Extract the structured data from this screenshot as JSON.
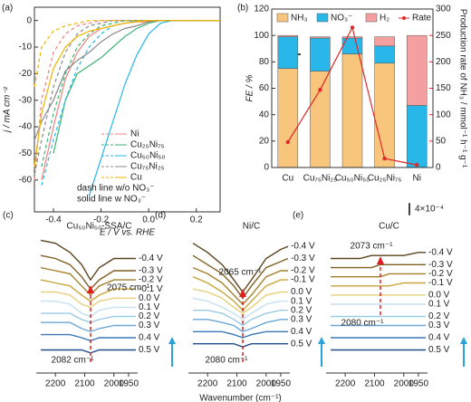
{
  "chart_data": [
    {
      "type": "line",
      "panel": "(a)",
      "xlabel": "E / V vs. RHE",
      "ylabel": "j / mA cm⁻²",
      "x": [
        -0.48,
        -0.45,
        -0.4,
        -0.35,
        -0.3,
        -0.25,
        -0.2,
        -0.15,
        -0.1,
        -0.05,
        0,
        0.05,
        0.1,
        0.2,
        0.3
      ],
      "xlim": [
        -0.48,
        0.3
      ],
      "xticks": [
        -0.4,
        -0.2,
        {
          "value": 0,
          "label": "0.0"
        },
        0.2
      ],
      "ylim": [
        -72,
        5
      ],
      "yticks": [
        0,
        -10,
        -20,
        -30,
        -40,
        -50,
        -60
      ],
      "series": [
        {
          "name": "Ni",
          "color": "#f08080",
          "values": [
            null,
            -60,
            -40,
            -22,
            -12,
            -6,
            -3,
            -2,
            -1,
            -0.5,
            -0.5,
            0,
            0,
            0,
            0
          ],
          "values_no_nitrate": [
            -60,
            -30,
            -12,
            -5,
            -2,
            -1,
            0,
            0,
            0,
            0,
            0,
            0,
            0,
            0,
            0
          ]
        },
        {
          "name": "Cu₂₅Ni₇₅",
          "color": "#3cb371",
          "values": [
            null,
            null,
            -50,
            -30,
            -20,
            -17,
            -14,
            -10,
            -6,
            -3,
            -1,
            0,
            0,
            0,
            0
          ],
          "values_no_nitrate": [
            null,
            -55,
            -35,
            -20,
            -10,
            -5,
            -2,
            -1,
            0,
            0,
            0,
            0,
            0,
            0,
            0
          ]
        },
        {
          "name": "Cu₅₀Ni₅₀",
          "color": "#29b6e8",
          "values": [
            null,
            null,
            null,
            null,
            null,
            -66,
            -52,
            -38,
            -24,
            -13,
            -5,
            -1,
            0,
            0,
            0
          ],
          "values_no_nitrate": [
            null,
            -62,
            -45,
            -30,
            -18,
            -10,
            -5,
            -2,
            -1,
            0,
            0,
            0,
            0,
            0,
            0
          ]
        },
        {
          "name": "Cu₇₅Ni₂₅",
          "color": "#8a8a8a",
          "values": [
            -45,
            -38,
            -30,
            -19,
            -15,
            -12,
            -8,
            -5,
            -3,
            -2,
            -0.5,
            0,
            0,
            0,
            0
          ],
          "values_no_nitrate": [
            -58,
            -45,
            -25,
            -12,
            -5,
            -2,
            -1,
            0,
            0,
            0,
            0,
            0,
            0,
            0,
            0
          ]
        },
        {
          "name": "Cu",
          "color": "#f0b400",
          "values": [
            -55,
            -35,
            -18,
            -10,
            -6,
            -4,
            -3,
            -2,
            -1,
            -0.5,
            0,
            0,
            0,
            0,
            0
          ],
          "values_no_nitrate": [
            -25,
            -10,
            -4,
            -2,
            -1,
            0,
            0,
            0,
            0,
            0,
            0,
            0,
            0,
            0,
            0
          ]
        }
      ],
      "annotations": [
        "dash line w/o NO₃⁻",
        "solid line w NO₃⁻"
      ]
    },
    {
      "type": "bar",
      "panel": "(b)",
      "ylabel": "FE / %",
      "y2label": "Production rate of NH₃ / mmol⁻¹ h⁻¹ g⁻¹",
      "categories": [
        "Cu",
        "Cu₇₅Ni₂₅",
        "Cu₅₀Ni₅₀",
        "Cu₂₅Ni₇₅",
        "Ni"
      ],
      "ylim": [
        0,
        120
      ],
      "yticks": [
        0,
        20,
        40,
        60,
        80,
        100,
        120
      ],
      "y2lim": [
        0,
        300
      ],
      "y2ticks": [
        0,
        50,
        100,
        150,
        200,
        250,
        300
      ],
      "series": [
        {
          "name": "NH₃",
          "color": "#f7c57c",
          "values": [
            75,
            73,
            86,
            79,
            0
          ]
        },
        {
          "name": "NO₃⁻",
          "color": "#29b6e8",
          "values": [
            24,
            25,
            12,
            13,
            47
          ]
        },
        {
          "name": "H₂",
          "color": "#f5a0a0",
          "values": [
            1,
            1,
            1,
            7,
            53
          ]
        },
        {
          "name": "Rate",
          "color": "#e02828",
          "axis": "y2",
          "values": [
            48,
            147,
            265,
            17,
            5
          ]
        }
      ]
    },
    {
      "type": "spectra",
      "title": "Cu₅₀Ni₅₀-SSA/C",
      "panel": "(c)",
      "x": [
        2250,
        2200,
        2150,
        2110,
        2080,
        2050,
        2000,
        1950,
        1925
      ],
      "xlim": [
        2250,
        1925
      ],
      "xticks": [
        2200,
        2100,
        2000,
        1950
      ],
      "ylim": [
        0,
        44
      ],
      "series": [
        {
          "name": "-0.4 V",
          "color": "#5c4320",
          "values": [
            43,
            42,
            39,
            35,
            30,
            34,
            37,
            37,
            37
          ]
        },
        {
          "name": "-0.3 V",
          "color": "#7f5f22",
          "values": [
            38,
            37,
            35,
            31,
            27,
            30,
            33,
            33,
            33
          ]
        },
        {
          "name": "-0.2 V",
          "color": "#a3802a",
          "values": [
            34,
            33,
            32,
            28,
            25,
            28,
            30,
            30,
            30
          ]
        },
        {
          "name": "-0.1 V",
          "color": "#c9a53a",
          "values": [
            30,
            29,
            28,
            25,
            23,
            25,
            27,
            27,
            27
          ]
        },
        {
          "name": "0.0 V",
          "color": "#e6d07a",
          "values": [
            26,
            26,
            25,
            22,
            21,
            23,
            24,
            24,
            24
          ]
        },
        {
          "name": "0.1 V",
          "color": "#c4e0f0",
          "values": [
            23,
            23,
            22,
            19,
            18,
            20,
            21,
            21,
            21
          ]
        },
        {
          "name": "0.2 V",
          "color": "#9ccbe8",
          "values": [
            19,
            19,
            19,
            17,
            16,
            17,
            18,
            18,
            18
          ]
        },
        {
          "name": "0.3 V",
          "color": "#6aa8d8",
          "values": [
            16,
            16,
            16,
            14,
            13,
            14,
            15,
            15,
            15
          ]
        },
        {
          "name": "0.4 V",
          "color": "#3a78b8",
          "values": [
            12,
            12,
            12,
            11,
            10,
            11,
            11,
            11,
            11
          ]
        },
        {
          "name": "0.5 V",
          "color": "#1f4e8c",
          "values": [
            7,
            7,
            7,
            7,
            6,
            7,
            7,
            7,
            7
          ]
        }
      ],
      "annotations": [
        "2075 cm⁻¹",
        "2082 cm⁻¹"
      ]
    },
    {
      "type": "spectra",
      "title": "Ni/C",
      "panel": "(d)",
      "xlabel": "Wavenumber (cm⁻¹)",
      "x": [
        2250,
        2200,
        2150,
        2110,
        2080,
        2050,
        2000,
        1950,
        1925
      ],
      "xlim": [
        2250,
        1925
      ],
      "xticks": [
        2200,
        2100,
        2000,
        1950
      ],
      "ylim": [
        0,
        44
      ],
      "series": [
        {
          "name": "-0.4 V",
          "color": "#5c4320",
          "values": [
            42,
            39,
            35,
            30,
            26,
            30,
            37,
            40,
            41
          ]
        },
        {
          "name": "-0.3 V",
          "color": "#7f5f22",
          "values": [
            38,
            35,
            32,
            28,
            24,
            28,
            34,
            36,
            37
          ]
        },
        {
          "name": "-0.2 V",
          "color": "#a3802a",
          "values": [
            34,
            32,
            29,
            25,
            22,
            25,
            31,
            33,
            33
          ]
        },
        {
          "name": "-0.1 V",
          "color": "#c9a53a",
          "values": [
            31,
            29,
            26,
            23,
            20,
            23,
            28,
            30,
            30
          ]
        },
        {
          "name": "0.0 V",
          "color": "#e6d07a",
          "values": [
            27,
            26,
            24,
            21,
            19,
            21,
            25,
            26,
            26
          ]
        },
        {
          "name": "0.1 V",
          "color": "#c4e0f0",
          "values": [
            24,
            23,
            21,
            19,
            17,
            19,
            22,
            23,
            23
          ]
        },
        {
          "name": "0.2 V",
          "color": "#9ccbe8",
          "values": [
            20,
            20,
            19,
            17,
            15,
            17,
            19,
            20,
            20
          ]
        },
        {
          "name": "0.3 V",
          "color": "#6aa8d8",
          "values": [
            17,
            17,
            16,
            15,
            13,
            14,
            16,
            17,
            17
          ]
        },
        {
          "name": "0.4 V",
          "color": "#3a78b8",
          "values": [
            13,
            13,
            13,
            12,
            11,
            12,
            13,
            13,
            13
          ]
        },
        {
          "name": "0.5 V",
          "color": "#1f4e8c",
          "values": [
            9,
            9,
            9,
            9,
            8,
            9,
            9,
            9,
            9
          ]
        }
      ],
      "annotations": [
        "2065 cm⁻¹",
        "2080 cm⁻¹"
      ]
    },
    {
      "type": "spectra",
      "title": "Cu/C",
      "panel": "(e)",
      "x": [
        2250,
        2200,
        2150,
        2110,
        2080,
        2050,
        2000,
        1950,
        1925
      ],
      "xlim": [
        2250,
        1925
      ],
      "xticks": [
        2200,
        2100,
        2000,
        1950
      ],
      "ylim": [
        0,
        44
      ],
      "scale_bar": {
        "value": 4,
        "label": "4×10⁻⁴"
      },
      "series": [
        {
          "name": "-0.4 V",
          "color": "#5c4320",
          "values": [
            37,
            37,
            37,
            38,
            38,
            38,
            38,
            39,
            39
          ]
        },
        {
          "name": "-0.3 V",
          "color": "#7f5f22",
          "values": [
            34,
            34,
            34,
            34,
            35,
            35,
            35,
            35,
            35
          ]
        },
        {
          "name": "-0.2 V",
          "color": "#a3802a",
          "values": [
            31,
            31,
            31,
            31,
            31,
            32,
            32,
            32,
            32
          ]
        },
        {
          "name": "-0.1 V",
          "color": "#c9a53a",
          "values": [
            28,
            28,
            28,
            28,
            28,
            28,
            29,
            29,
            29
          ]
        },
        {
          "name": "0.0 V",
          "color": "#e6d07a",
          "values": [
            25,
            25,
            25,
            25,
            25,
            25,
            25,
            25,
            25
          ]
        },
        {
          "name": "0.1 V",
          "color": "#c4e0f0",
          "values": [
            22,
            22,
            22,
            22,
            22,
            22,
            22,
            22,
            22
          ]
        },
        {
          "name": "0.2 V",
          "color": "#9ccbe8",
          "values": [
            18,
            18,
            18,
            18,
            18,
            18,
            18,
            18,
            18
          ]
        },
        {
          "name": "0.3 V",
          "color": "#6aa8d8",
          "values": [
            15,
            15,
            15,
            15,
            15,
            15,
            15,
            15,
            15
          ]
        },
        {
          "name": "0.4 V",
          "color": "#3a78b8",
          "values": [
            11,
            11,
            11,
            11,
            11,
            11,
            11,
            11,
            11
          ]
        },
        {
          "name": "0.5 V",
          "color": "#1f4e8c",
          "values": [
            7,
            7,
            7,
            7,
            7,
            7,
            7,
            7,
            7
          ]
        }
      ],
      "annotations": [
        "2073 cm⁻¹",
        "2080 cm⁻¹"
      ]
    }
  ]
}
